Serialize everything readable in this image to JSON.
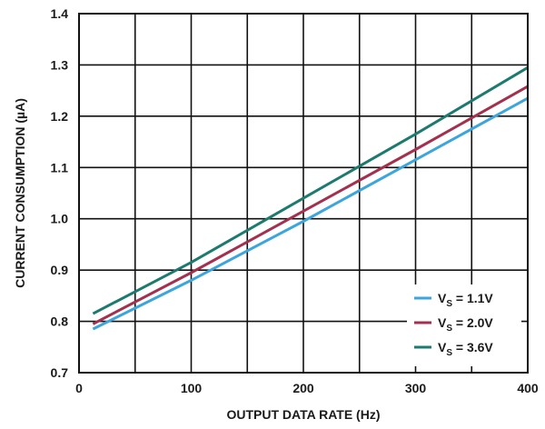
{
  "chart_data": {
    "type": "line",
    "title": "",
    "xlabel": "OUTPUT DATA RATE (Hz)",
    "ylabel": "CURRENT CONSUMPTION (µA)",
    "xlim": [
      0,
      400
    ],
    "ylim": [
      0.7,
      1.4
    ],
    "x_ticks": [
      0,
      100,
      200,
      300,
      400
    ],
    "y_ticks": [
      0.7,
      0.8,
      0.9,
      1.0,
      1.1,
      1.2,
      1.3,
      1.4
    ],
    "x_tick_labels": [
      "0",
      "100",
      "200",
      "300",
      "400"
    ],
    "y_tick_labels": [
      "0.7",
      "0.8",
      "0.9",
      "1.0",
      "1.1",
      "1.2",
      "1.3",
      "1.4"
    ],
    "x_minor_grid_step": 50,
    "grid": true,
    "legend_position": "bottom-right",
    "series": [
      {
        "name": "VS = 1.1V",
        "label_main": "V",
        "label_sub": "S",
        "label_rest": " = 1.1V",
        "color": "#3ca5dc",
        "x": [
          12.5,
          100,
          200,
          300,
          400
        ],
        "y": [
          0.785,
          0.88,
          0.995,
          1.115,
          1.235
        ]
      },
      {
        "name": "VS = 2.0V",
        "label_main": "V",
        "label_sub": "S",
        "label_rest": " = 2.0V",
        "color": "#a3304f",
        "x": [
          12.5,
          100,
          200,
          300,
          400
        ],
        "y": [
          0.795,
          0.895,
          1.015,
          1.135,
          1.258
        ]
      },
      {
        "name": "VS = 3.6V",
        "label_main": "V",
        "label_sub": "S",
        "label_rest": " = 3.6V",
        "color": "#1c7a6e",
        "x": [
          12.5,
          100,
          200,
          300,
          400
        ],
        "y": [
          0.815,
          0.915,
          1.04,
          1.165,
          1.295
        ]
      }
    ]
  }
}
